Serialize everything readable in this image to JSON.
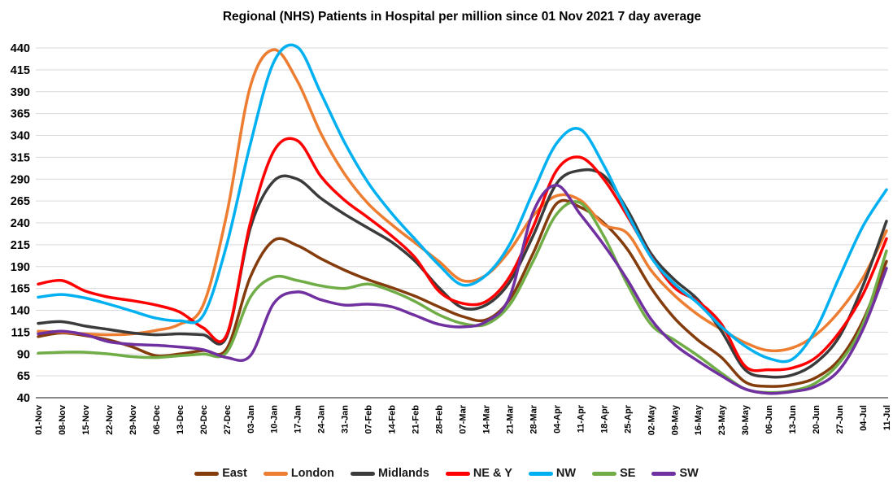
{
  "title": "Regional (NHS) Patients in Hospital per million since 01 Nov 2021 7 day average",
  "chart_data": {
    "type": "line",
    "title": "Regional (NHS) Patients in Hospital per million since 01 Nov 2021 7 day average",
    "xlabel": "",
    "ylabel": "",
    "ylim": [
      40,
      440
    ],
    "y_ticks": [
      440,
      415,
      390,
      365,
      340,
      315,
      290,
      265,
      240,
      215,
      190,
      165,
      140,
      115,
      90,
      65,
      40
    ],
    "grid": "horizontal",
    "legend_position": "bottom",
    "categories": [
      "01-Nov",
      "08-Nov",
      "15-Nov",
      "22-Nov",
      "29-Nov",
      "06-Dec",
      "13-Dec",
      "20-Dec",
      "27-Dec",
      "03-Jan",
      "10-Jan",
      "17-Jan",
      "24-Jan",
      "31-Jan",
      "07-Feb",
      "14-Feb",
      "21-Feb",
      "28-Feb",
      "07-Mar",
      "14-Mar",
      "21-Mar",
      "28-Mar",
      "04-Apr",
      "11-Apr",
      "18-Apr",
      "25-Apr",
      "02-May",
      "09-May",
      "16-May",
      "23-May",
      "30-May",
      "06-Jun",
      "13-Jun",
      "20-Jun",
      "27-Jun",
      "04-Jul",
      "11-Jul"
    ],
    "series": [
      {
        "name": "East",
        "color": "#843C0C",
        "values": [
          110,
          114,
          111,
          106,
          98,
          88,
          90,
          94,
          96,
          178,
          220,
          214,
          199,
          186,
          175,
          166,
          156,
          144,
          133,
          129,
          152,
          205,
          262,
          258,
          240,
          210,
          166,
          131,
          106,
          86,
          58,
          53,
          55,
          63,
          84,
          128,
          196
        ]
      },
      {
        "name": "London",
        "color": "#ED7D31",
        "values": [
          116,
          115,
          113,
          112,
          113,
          117,
          124,
          146,
          250,
          396,
          438,
          402,
          342,
          296,
          262,
          238,
          217,
          196,
          174,
          180,
          208,
          248,
          271,
          266,
          238,
          228,
          186,
          157,
          135,
          118,
          103,
          94,
          97,
          112,
          139,
          177,
          231
        ]
      },
      {
        "name": "Midlands",
        "color": "#3B3B3B",
        "values": [
          125,
          127,
          122,
          118,
          114,
          112,
          113,
          112,
          110,
          234,
          288,
          290,
          268,
          250,
          234,
          218,
          196,
          166,
          143,
          146,
          172,
          225,
          285,
          300,
          294,
          255,
          205,
          175,
          152,
          116,
          72,
          64,
          66,
          80,
          110,
          168,
          242
        ]
      },
      {
        "name": "NE & Y",
        "color": "#FF0000",
        "values": [
          170,
          174,
          162,
          155,
          151,
          146,
          138,
          120,
          112,
          240,
          322,
          334,
          293,
          266,
          246,
          225,
          200,
          162,
          148,
          150,
          178,
          235,
          300,
          315,
          290,
          248,
          202,
          166,
          150,
          124,
          76,
          72,
          74,
          86,
          115,
          158,
          222
        ]
      },
      {
        "name": "NW",
        "color": "#00B0F0",
        "values": [
          155,
          158,
          154,
          147,
          139,
          131,
          128,
          134,
          215,
          330,
          424,
          441,
          388,
          332,
          286,
          251,
          221,
          192,
          169,
          180,
          215,
          275,
          331,
          347,
          306,
          251,
          201,
          170,
          148,
          121,
          99,
          85,
          84,
          118,
          178,
          236,
          278
        ]
      },
      {
        "name": "SE",
        "color": "#70AD47",
        "values": [
          91,
          92,
          92,
          90,
          87,
          86,
          88,
          90,
          92,
          155,
          178,
          174,
          168,
          165,
          170,
          162,
          150,
          135,
          125,
          124,
          146,
          196,
          250,
          263,
          225,
          170,
          124,
          106,
          88,
          68,
          50,
          46,
          48,
          57,
          80,
          124,
          208
        ]
      },
      {
        "name": "SW",
        "color": "#7030A0",
        "values": [
          113,
          116,
          112,
          104,
          101,
          100,
          98,
          95,
          86,
          88,
          148,
          161,
          152,
          146,
          147,
          144,
          134,
          124,
          121,
          127,
          155,
          252,
          283,
          250,
          215,
          175,
          130,
          101,
          82,
          65,
          50,
          45,
          47,
          53,
          72,
          118,
          188
        ]
      }
    ],
    "style": {
      "gridline_color": "#D9D9D9",
      "axis_color": "#404040",
      "tick_label_color": "#000000",
      "line_width": 3.5
    }
  }
}
